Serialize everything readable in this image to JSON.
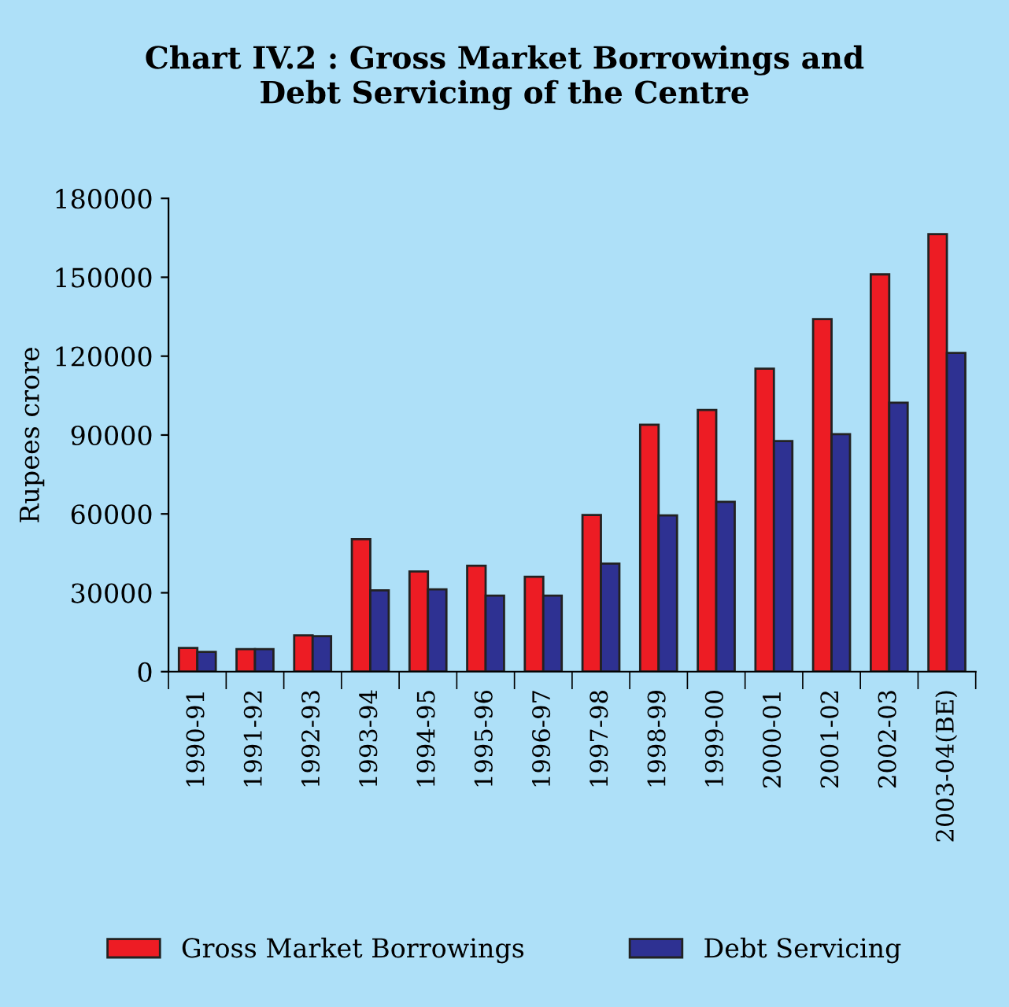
{
  "chart_data": {
    "type": "bar",
    "title": "Chart IV.2 : Gross Market Borrowings and\nDebt Servicing of the Centre",
    "ylabel": "Rupees crore",
    "categories": [
      "1990-91",
      "1991-92",
      "1992-93",
      "1993-94",
      "1994-95",
      "1995-96",
      "1996-97",
      "1997-98",
      "1998-99",
      "1999-00",
      "2000-01",
      "2001-02",
      "2002-03",
      "2003-04(BE)"
    ],
    "series": [
      {
        "name": "Gross Market Borrowings",
        "color": "#ed1c24",
        "values": [
          9000,
          8600,
          13800,
          50400,
          38100,
          40300,
          36100,
          59600,
          93900,
          99500,
          115200,
          134100,
          151100,
          166400
        ]
      },
      {
        "name": "Debt Servicing",
        "color": "#2e3192",
        "values": [
          7500,
          8600,
          13500,
          30900,
          31300,
          28900,
          28900,
          41100,
          59400,
          64600,
          87700,
          90300,
          102300,
          121200
        ]
      }
    ],
    "ylim": [
      0,
      180000
    ],
    "yticks": [
      0,
      30000,
      60000,
      90000,
      120000,
      150000,
      180000
    ],
    "grid": false,
    "legend": "bottom"
  }
}
